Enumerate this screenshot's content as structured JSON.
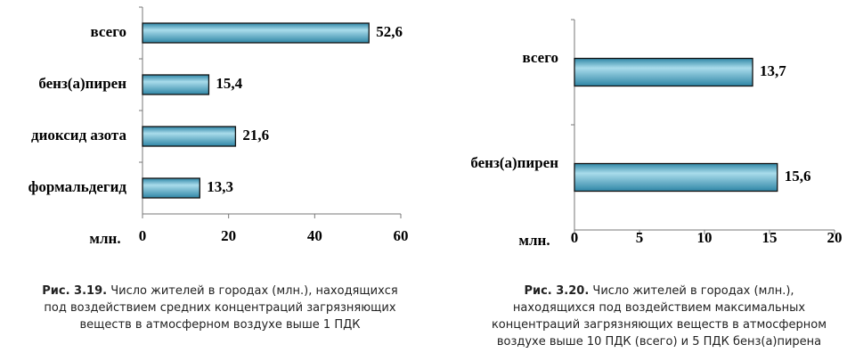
{
  "chart_data": [
    {
      "type": "bar",
      "orientation": "horizontal",
      "categories": [
        "всего",
        "бенз(а)пирен",
        "диоксид азота",
        "формальдегид"
      ],
      "values": [
        52.6,
        15.4,
        21.6,
        13.3
      ],
      "value_labels": [
        "52,6",
        "15,4",
        "21,6",
        "13,3"
      ],
      "color": "#2f86a6",
      "xlim": [
        0,
        60
      ],
      "xticks": [
        0,
        20,
        40,
        60
      ],
      "xlabel": "млн.",
      "figure_number": "Рис. 3.19.",
      "caption": [
        "Число жителей в городах (млн.), находящихся",
        "под воздействием средних концентраций загрязняющих",
        "веществ в атмосферном воздухе выше 1 ПДК"
      ]
    },
    {
      "type": "bar",
      "orientation": "horizontal",
      "categories": [
        "всего",
        "бенз(а)пирен"
      ],
      "values": [
        13.7,
        15.6
      ],
      "value_labels": [
        "13,7",
        "15,6"
      ],
      "color": "#2f86a6",
      "xlim": [
        0,
        20
      ],
      "xticks": [
        0,
        5,
        10,
        15,
        20
      ],
      "xlabel": "млн.",
      "figure_number": "Рис. 3.20.",
      "caption": [
        "Число жителей в городах (млн.),",
        "находящихся под воздействием максимальных",
        "концентраций загрязняющих веществ в атмосферном",
        "воздухе выше 10 ПДК (всего) и 5 ПДК бенз(а)пирена"
      ]
    }
  ]
}
